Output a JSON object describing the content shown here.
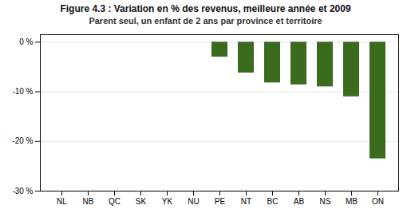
{
  "chart_data": {
    "type": "bar",
    "title": "Figure 4.3 : Variation en % des revenus, meilleure année et 2009",
    "subtitle": "Parent seul, un enfant de 2 ans par province et territoire",
    "categories": [
      "NL",
      "NB",
      "QC",
      "SK",
      "YK",
      "NU",
      "PE",
      "NT",
      "BC",
      "AB",
      "NS",
      "MB",
      "ON"
    ],
    "values": [
      0,
      0,
      0,
      0,
      0,
      0,
      -3.0,
      -6.2,
      -8.2,
      -8.6,
      -9.0,
      -11.0,
      -23.5
    ],
    "color": "#3a6b1e",
    "ylim": [
      -30,
      1.5
    ],
    "yticks": [
      {
        "value": 0,
        "label": "0 %"
      },
      {
        "value": -10,
        "label": "-10 %"
      },
      {
        "value": -20,
        "label": "-20 %"
      },
      {
        "value": -30,
        "label": "-30 %"
      }
    ],
    "grid": true
  }
}
